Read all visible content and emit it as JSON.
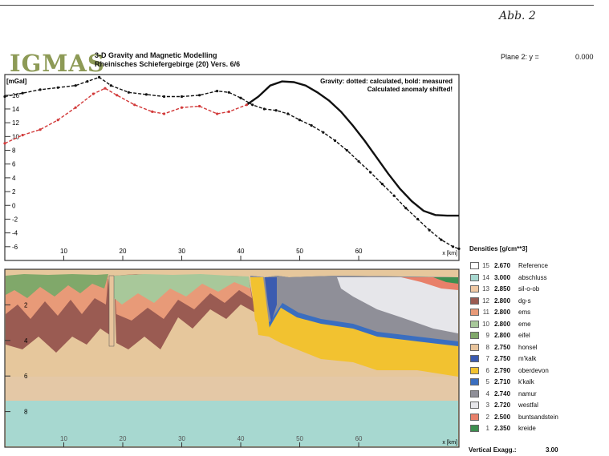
{
  "header": {
    "corner_note": "Abb. 2",
    "logo": "IGMAS",
    "title_line1": "3-D Gravity and Magnetic Modelling",
    "title_line2": "Rheinisches Schiefergebirge (20) Vers. 6/6",
    "plane_label": "Plane 2: y =",
    "plane_value": "0.000"
  },
  "gravity_panel": {
    "unit_label": "[mGal]",
    "note_line1": "Gravity: dotted: calculated, bold: measured",
    "note_line2": "Calculated anomaly shifted!",
    "y_ticks": [
      {
        "v": 16,
        "label": "16"
      },
      {
        "v": 14,
        "label": "14"
      },
      {
        "v": 12,
        "label": "12"
      },
      {
        "v": 10,
        "label": "10"
      },
      {
        "v": 8,
        "label": "8"
      },
      {
        "v": 6,
        "label": "6"
      },
      {
        "v": 4,
        "label": "4"
      },
      {
        "v": 2,
        "label": "2"
      },
      {
        "v": 0,
        "label": "0"
      },
      {
        "v": -2,
        "label": "-2"
      },
      {
        "v": -4,
        "label": "-4"
      },
      {
        "v": -6,
        "label": "-6"
      }
    ],
    "x_ticks": [
      {
        "v": 10,
        "label": "10"
      },
      {
        "v": 20,
        "label": "20"
      },
      {
        "v": 30,
        "label": "30"
      },
      {
        "v": 40,
        "label": "40"
      },
      {
        "v": 50,
        "label": "50"
      },
      {
        "v": 60,
        "label": "60"
      }
    ],
    "x_unit": "x [km]"
  },
  "section_panel": {
    "depth_labels": [
      {
        "v": 2,
        "label": "2"
      },
      {
        "v": 4,
        "label": "4"
      },
      {
        "v": 6,
        "label": "6"
      },
      {
        "v": 8,
        "label": "8"
      }
    ],
    "x_ticks": [
      {
        "v": 10,
        "label": "10"
      },
      {
        "v": 20,
        "label": "20"
      },
      {
        "v": 30,
        "label": "30"
      },
      {
        "v": 40,
        "label": "40"
      },
      {
        "v": 50,
        "label": "50"
      },
      {
        "v": 60,
        "label": "60"
      }
    ],
    "x_unit": "x [km]"
  },
  "chart_data": {
    "type": "line",
    "title": "",
    "xlabel": "x [km]",
    "ylabel": "[mGal]",
    "xlim": [
      0,
      77
    ],
    "ylim": [
      -8,
      19
    ],
    "series": [
      {
        "name": "measured",
        "style": "bold",
        "color": "#111111",
        "points": [
          [
            41,
            14.6
          ],
          [
            43,
            15.8
          ],
          [
            45,
            17.4
          ],
          [
            47,
            18.0
          ],
          [
            49,
            17.9
          ],
          [
            51,
            17.4
          ],
          [
            53,
            16.4
          ],
          [
            55,
            15.2
          ],
          [
            57,
            13.6
          ],
          [
            59,
            11.6
          ],
          [
            61,
            9.4
          ],
          [
            63,
            7.0
          ],
          [
            65,
            4.6
          ],
          [
            67,
            2.4
          ],
          [
            69,
            0.6
          ],
          [
            71,
            -0.8
          ],
          [
            73,
            -1.4
          ],
          [
            75,
            -1.5
          ],
          [
            77,
            -1.5
          ]
        ]
      },
      {
        "name": "calculated",
        "style": "dotted",
        "color": "#111111",
        "points": [
          [
            0,
            15.8
          ],
          [
            3,
            16.3
          ],
          [
            6,
            16.8
          ],
          [
            9,
            17.1
          ],
          [
            12,
            17.4
          ],
          [
            14,
            18.0
          ],
          [
            16,
            18.6
          ],
          [
            18,
            17.4
          ],
          [
            21,
            16.4
          ],
          [
            24,
            16.1
          ],
          [
            27,
            15.8
          ],
          [
            30,
            15.8
          ],
          [
            33,
            16.0
          ],
          [
            36,
            16.6
          ],
          [
            38,
            16.4
          ],
          [
            40,
            15.6
          ],
          [
            42,
            14.6
          ],
          [
            44,
            14.0
          ],
          [
            46,
            13.8
          ],
          [
            48,
            13.3
          ],
          [
            50,
            12.4
          ],
          [
            52,
            11.6
          ],
          [
            54,
            10.6
          ],
          [
            56,
            9.4
          ],
          [
            58,
            8.0
          ],
          [
            60,
            6.4
          ],
          [
            62,
            4.8
          ],
          [
            64,
            3.1
          ],
          [
            66,
            1.4
          ],
          [
            68,
            -0.4
          ],
          [
            70,
            -2.0
          ],
          [
            72,
            -3.6
          ],
          [
            74,
            -5.0
          ],
          [
            76,
            -6.0
          ],
          [
            77,
            -6.3
          ]
        ]
      },
      {
        "name": "calculated (unshifted)",
        "style": "dotted",
        "color": "#d23a3a",
        "points": [
          [
            0,
            9.0
          ],
          [
            3,
            10.2
          ],
          [
            6,
            11.0
          ],
          [
            9,
            12.4
          ],
          [
            12,
            14.2
          ],
          [
            15,
            16.2
          ],
          [
            17,
            17.0
          ],
          [
            19,
            16.0
          ],
          [
            22,
            14.6
          ],
          [
            25,
            13.6
          ],
          [
            27,
            13.3
          ],
          [
            30,
            14.2
          ],
          [
            33,
            14.4
          ],
          [
            36,
            13.3
          ],
          [
            38,
            13.6
          ],
          [
            41,
            14.6
          ]
        ]
      }
    ],
    "cross_section": {
      "depth_range_km": [
        0,
        10
      ],
      "layers": [
        {
          "id": 15,
          "density": "2.670",
          "name": "Reference",
          "color": "#ffffff"
        },
        {
          "id": 14,
          "density": "3.000",
          "name": "abschluss",
          "color": "#a7d8d0"
        },
        {
          "id": 13,
          "density": "2.850",
          "name": "sil-o-ob",
          "color": "#f0c9a4"
        },
        {
          "id": 12,
          "density": "2.800",
          "name": "dg-s",
          "color": "#9a5b52"
        },
        {
          "id": 11,
          "density": "2.800",
          "name": "ems",
          "color": "#e89a78"
        },
        {
          "id": 10,
          "density": "2.800",
          "name": "eme",
          "color": "#a8c89a"
        },
        {
          "id": 9,
          "density": "2.800",
          "name": "eifel",
          "color": "#80a86a"
        },
        {
          "id": 8,
          "density": "2.750",
          "name": "honsel",
          "color": "#e8c49c"
        },
        {
          "id": 7,
          "density": "2.750",
          "name": "m'kalk",
          "color": "#3b5bb0"
        },
        {
          "id": 6,
          "density": "2.790",
          "name": "oberdevon",
          "color": "#f2c230"
        },
        {
          "id": 5,
          "density": "2.710",
          "name": "k'kalk",
          "color": "#3a6ec0"
        },
        {
          "id": 4,
          "density": "2.740",
          "name": "namur",
          "color": "#8f8f98"
        },
        {
          "id": 3,
          "density": "2.720",
          "name": "westfal",
          "color": "#e6e6ea"
        },
        {
          "id": 2,
          "density": "2.500",
          "name": "buntsandstein",
          "color": "#e8806a"
        },
        {
          "id": 1,
          "density": "2.350",
          "name": "kreide",
          "color": "#3c8f50"
        }
      ]
    }
  },
  "legend": {
    "title": "Densities [g/cm**3]",
    "vertical_exag_label": "Vertical Exagg.:",
    "vertical_exag_value": "3.00"
  }
}
